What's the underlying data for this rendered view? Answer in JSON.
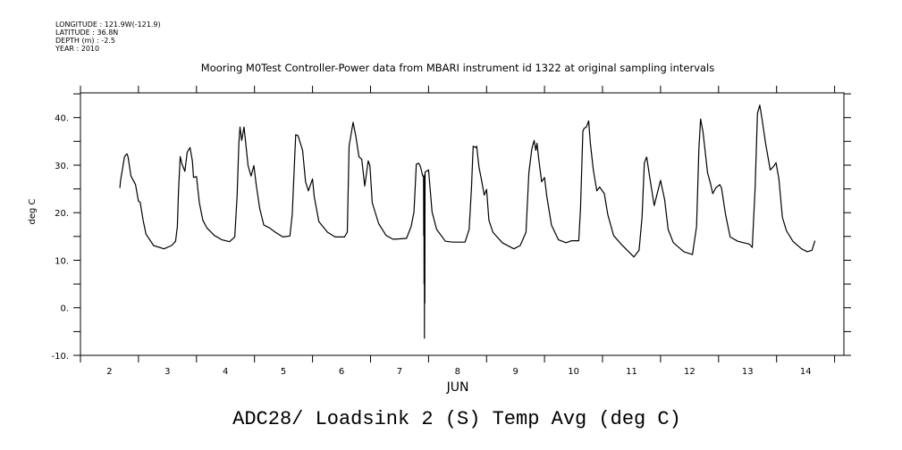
{
  "header": {
    "longitude": "LONGITUDE : 121.9W(-121.9)",
    "latitude": "LATITUDE : 36.8N",
    "depth": "DEPTH (m) : -2.5",
    "year": "YEAR : 2010"
  },
  "chart_data": {
    "type": "line",
    "title": "Mooring M0Test Controller-Power data from MBARI instrument id 1322 at original sampling intervals",
    "xlabel": "JUN",
    "ylabel": "deg C",
    "bottom_title": "ADC28/ Loadsink 2 (S) Temp Avg (deg C)",
    "xlim": [
      2.0,
      15.16
    ],
    "ylim": [
      -10,
      45.2
    ],
    "x_ticks": [
      2,
      3,
      4,
      5,
      6,
      7,
      8,
      9,
      10,
      11,
      12,
      13,
      14
    ],
    "x_tick_labels": [
      "2",
      "3",
      "4",
      "5",
      "6",
      "7",
      "8",
      "9",
      "10",
      "11",
      "12",
      "13",
      "14"
    ],
    "y_ticks": [
      -10,
      0,
      10,
      20,
      30,
      40
    ],
    "y_tick_labels": [
      "-10.",
      "0.",
      "10.",
      "20.",
      "30.",
      "40."
    ],
    "grid": false,
    "color": "#000000",
    "series": [
      {
        "name": "Temp Avg",
        "x_unit": "June day (decimal)",
        "points": [
          [
            2.68,
            25.2
          ],
          [
            2.69,
            26.7
          ],
          [
            2.76,
            31.8
          ],
          [
            2.8,
            32.4
          ],
          [
            2.82,
            31.8
          ],
          [
            2.87,
            27.7
          ],
          [
            2.95,
            25.9
          ],
          [
            3.0,
            22.4
          ],
          [
            3.03,
            22.2
          ],
          [
            3.08,
            18.4
          ],
          [
            3.13,
            15.5
          ],
          [
            3.26,
            13.1
          ],
          [
            3.44,
            12.4
          ],
          [
            3.57,
            13.1
          ],
          [
            3.64,
            14.0
          ],
          [
            3.67,
            17.1
          ],
          [
            3.69,
            24.6
          ],
          [
            3.72,
            31.8
          ],
          [
            3.75,
            30.2
          ],
          [
            3.8,
            28.7
          ],
          [
            3.84,
            32.7
          ],
          [
            3.89,
            33.7
          ],
          [
            3.93,
            30.9
          ],
          [
            3.95,
            27.4
          ],
          [
            4.0,
            27.6
          ],
          [
            4.05,
            22.1
          ],
          [
            4.11,
            18.4
          ],
          [
            4.18,
            16.8
          ],
          [
            4.31,
            15.2
          ],
          [
            4.44,
            14.3
          ],
          [
            4.57,
            13.9
          ],
          [
            4.66,
            14.9
          ],
          [
            4.7,
            23.4
          ],
          [
            4.73,
            34.6
          ],
          [
            4.75,
            38.0
          ],
          [
            4.78,
            35.2
          ],
          [
            4.82,
            38.0
          ],
          [
            4.85,
            34.6
          ],
          [
            4.89,
            29.9
          ],
          [
            4.94,
            27.7
          ],
          [
            4.99,
            29.9
          ],
          [
            5.03,
            25.9
          ],
          [
            5.09,
            20.9
          ],
          [
            5.16,
            17.4
          ],
          [
            5.26,
            16.8
          ],
          [
            5.36,
            15.9
          ],
          [
            5.49,
            14.9
          ],
          [
            5.61,
            15.1
          ],
          [
            5.65,
            19.6
          ],
          [
            5.69,
            30.9
          ],
          [
            5.71,
            36.4
          ],
          [
            5.75,
            36.2
          ],
          [
            5.83,
            33.1
          ],
          [
            5.88,
            26.5
          ],
          [
            5.93,
            24.6
          ],
          [
            6.0,
            27.1
          ],
          [
            6.03,
            23.4
          ],
          [
            6.11,
            18.1
          ],
          [
            6.26,
            15.9
          ],
          [
            6.39,
            14.9
          ],
          [
            6.55,
            14.9
          ],
          [
            6.6,
            15.9
          ],
          [
            6.63,
            34.0
          ],
          [
            6.7,
            39.0
          ],
          [
            6.75,
            35.9
          ],
          [
            6.8,
            31.8
          ],
          [
            6.85,
            31.2
          ],
          [
            6.9,
            25.6
          ],
          [
            6.96,
            30.9
          ],
          [
            6.99,
            29.9
          ],
          [
            7.03,
            22.1
          ],
          [
            7.14,
            17.7
          ],
          [
            7.27,
            15.2
          ],
          [
            7.39,
            14.4
          ],
          [
            7.62,
            14.6
          ],
          [
            7.7,
            17.1
          ],
          [
            7.75,
            20.2
          ],
          [
            7.79,
            30.2
          ],
          [
            7.83,
            30.4
          ],
          [
            7.86,
            29.7
          ],
          [
            7.9,
            27.7
          ],
          [
            7.915,
            27.7
          ],
          [
            7.918,
            15.2
          ],
          [
            7.921,
            27.0
          ],
          [
            7.924,
            5.0
          ],
          [
            7.927,
            27.5
          ],
          [
            7.93,
            -6.4
          ],
          [
            7.933,
            28.0
          ],
          [
            7.936,
            1.0
          ],
          [
            7.94,
            28.5
          ],
          [
            8.0,
            29.0
          ],
          [
            8.06,
            20.2
          ],
          [
            8.14,
            16.5
          ],
          [
            8.29,
            14.0
          ],
          [
            8.42,
            13.8
          ],
          [
            8.63,
            13.8
          ],
          [
            8.7,
            16.5
          ],
          [
            8.74,
            25.2
          ],
          [
            8.77,
            34.0
          ],
          [
            8.81,
            33.7
          ],
          [
            8.83,
            34.0
          ],
          [
            8.87,
            29.6
          ],
          [
            8.91,
            27.1
          ],
          [
            8.96,
            23.7
          ],
          [
            9.0,
            24.9
          ],
          [
            9.04,
            18.4
          ],
          [
            9.11,
            15.9
          ],
          [
            9.27,
            13.7
          ],
          [
            9.47,
            12.4
          ],
          [
            9.58,
            13.1
          ],
          [
            9.68,
            15.9
          ],
          [
            9.73,
            28.4
          ],
          [
            9.78,
            33.4
          ],
          [
            9.82,
            35.2
          ],
          [
            9.85,
            33.1
          ],
          [
            9.87,
            34.6
          ],
          [
            9.9,
            31.2
          ],
          [
            9.95,
            26.5
          ],
          [
            10.0,
            27.4
          ],
          [
            10.04,
            23.4
          ],
          [
            10.12,
            17.4
          ],
          [
            10.24,
            14.3
          ],
          [
            10.37,
            13.7
          ],
          [
            10.47,
            14.1
          ],
          [
            10.59,
            14.1
          ],
          [
            10.62,
            20.9
          ],
          [
            10.66,
            37.1
          ],
          [
            10.68,
            37.7
          ],
          [
            10.72,
            38.0
          ],
          [
            10.76,
            39.3
          ],
          [
            10.79,
            34.6
          ],
          [
            10.84,
            29.0
          ],
          [
            10.9,
            24.6
          ],
          [
            10.95,
            25.4
          ],
          [
            11.03,
            24.0
          ],
          [
            11.09,
            19.6
          ],
          [
            11.19,
            15.2
          ],
          [
            11.32,
            13.4
          ],
          [
            11.45,
            11.8
          ],
          [
            11.54,
            10.7
          ],
          [
            11.63,
            12.1
          ],
          [
            11.68,
            19.0
          ],
          [
            11.72,
            30.5
          ],
          [
            11.76,
            31.7
          ],
          [
            11.81,
            27.7
          ],
          [
            11.89,
            21.5
          ],
          [
            12.0,
            26.8
          ],
          [
            12.07,
            22.7
          ],
          [
            12.13,
            16.5
          ],
          [
            12.22,
            13.7
          ],
          [
            12.4,
            11.8
          ],
          [
            12.55,
            11.2
          ],
          [
            12.62,
            17.1
          ],
          [
            12.66,
            33.4
          ],
          [
            12.69,
            39.7
          ],
          [
            12.73,
            37.1
          ],
          [
            12.81,
            28.4
          ],
          [
            12.86,
            26.2
          ],
          [
            12.9,
            24.0
          ],
          [
            12.95,
            25.2
          ],
          [
            13.02,
            25.9
          ],
          [
            13.05,
            25.2
          ],
          [
            13.12,
            19.6
          ],
          [
            13.2,
            14.9
          ],
          [
            13.33,
            14.0
          ],
          [
            13.53,
            13.4
          ],
          [
            13.58,
            12.7
          ],
          [
            13.63,
            25.2
          ],
          [
            13.67,
            40.9
          ],
          [
            13.71,
            42.6
          ],
          [
            13.75,
            39.6
          ],
          [
            13.81,
            34.6
          ],
          [
            13.89,
            29.0
          ],
          [
            13.94,
            29.6
          ],
          [
            13.99,
            30.5
          ],
          [
            14.04,
            27.1
          ],
          [
            14.1,
            19.0
          ],
          [
            14.17,
            16.2
          ],
          [
            14.28,
            14.0
          ],
          [
            14.43,
            12.4
          ],
          [
            14.53,
            11.8
          ],
          [
            14.61,
            12.1
          ],
          [
            14.66,
            14.1
          ]
        ]
      }
    ]
  }
}
